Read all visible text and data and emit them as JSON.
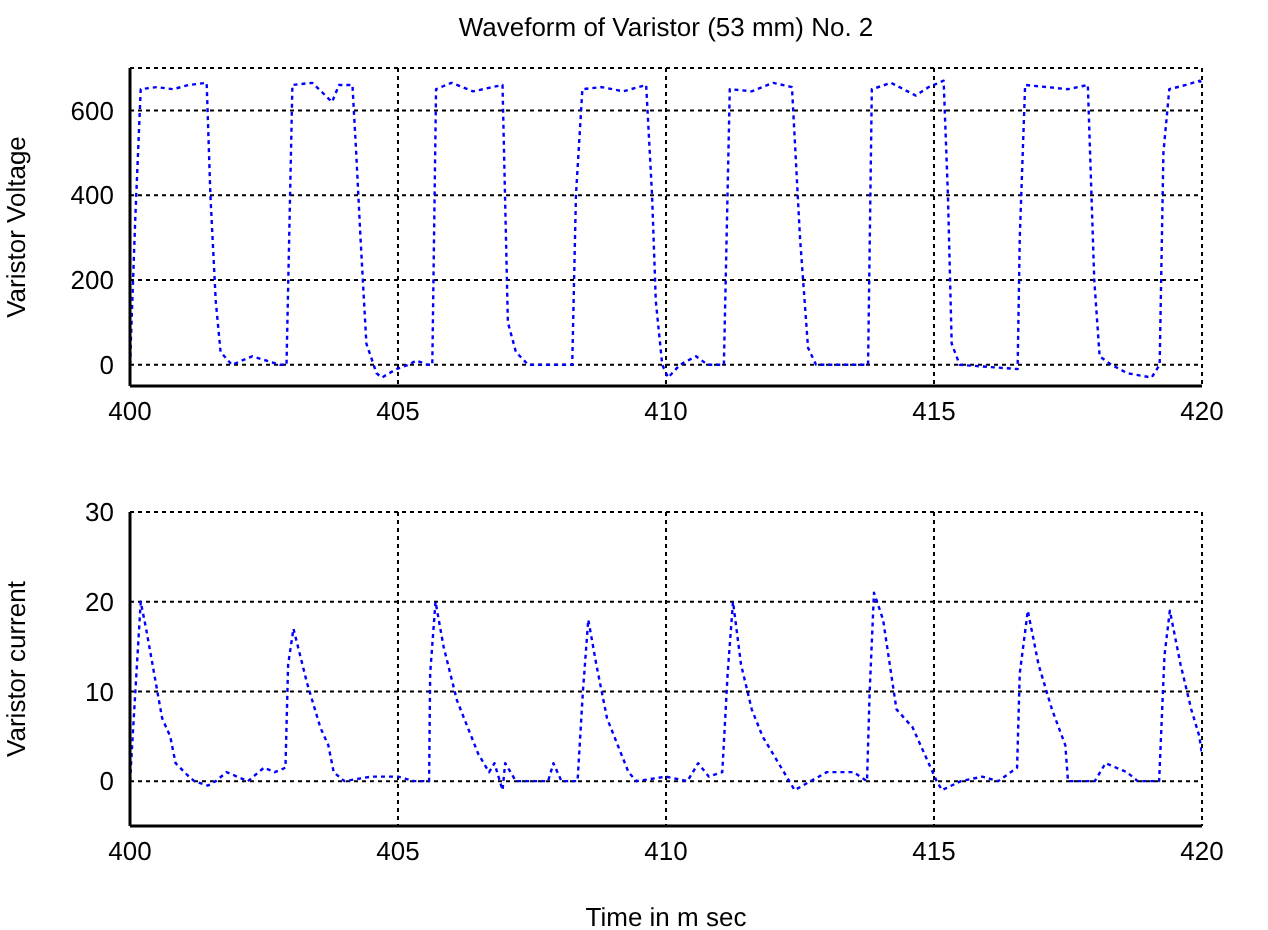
{
  "chart_data": [
    {
      "type": "line",
      "title": "Waveform of Varistor (53 mm) No. 2",
      "ylabel": "Varistor Voltage",
      "xlim": [
        400,
        420
      ],
      "xticks": [
        400,
        405,
        410,
        415,
        420
      ],
      "ylim": [
        -50,
        700
      ],
      "yticks": [
        0,
        200,
        400,
        600
      ],
      "grid": true,
      "line_style": "dotted",
      "x": [
        400,
        400.1,
        400.2,
        400.5,
        400.8,
        401.1,
        401.43,
        401.5,
        401.54,
        401.6,
        401.69,
        401.9,
        402.28,
        402.8,
        402.92,
        403.03,
        403.4,
        403.77,
        403.9,
        404.15,
        404.22,
        404.3,
        404.41,
        404.6,
        404.7,
        404.97,
        405.2,
        405.34,
        405.56,
        405.64,
        405.71,
        406.0,
        406.4,
        406.95,
        407.05,
        407.2,
        407.43,
        408.25,
        408.32,
        408.44,
        408.8,
        409.2,
        409.63,
        409.74,
        409.81,
        409.93,
        410.04,
        410.26,
        410.56,
        410.78,
        411.08,
        411.19,
        411.6,
        412.0,
        412.35,
        412.5,
        412.65,
        412.8,
        413.77,
        413.84,
        414.2,
        414.66,
        414.9,
        415.18,
        415.26,
        415.33,
        415.48,
        416.56,
        416.6,
        416.7,
        417.1,
        417.5,
        417.87,
        417.99,
        418.09,
        418.31,
        418.61,
        419.06,
        419.21,
        419.28,
        419.39,
        419.7,
        419.96,
        420
      ],
      "series": [
        {
          "color": "#0000ff",
          "values": [
            0,
            350,
            650,
            655,
            650,
            660,
            665,
            400,
            300,
            150,
            30,
            0,
            20,
            0,
            0,
            660,
            665,
            620,
            660,
            660,
            500,
            300,
            50,
            -20,
            -30,
            -10,
            0,
            10,
            0,
            0,
            650,
            665,
            645,
            660,
            100,
            30,
            0,
            0,
            400,
            650,
            655,
            645,
            660,
            400,
            150,
            0,
            -30,
            0,
            20,
            0,
            0,
            650,
            645,
            665,
            655,
            300,
            40,
            0,
            0,
            650,
            665,
            635,
            655,
            670,
            400,
            50,
            0,
            -10,
            300,
            660,
            655,
            650,
            660,
            200,
            20,
            0,
            -20,
            -30,
            0,
            500,
            650,
            660,
            670,
            660
          ]
        }
      ]
    },
    {
      "type": "line",
      "xlabel": "Time in m sec",
      "ylabel": "Varistor current",
      "xlim": [
        400,
        420
      ],
      "xticks": [
        400,
        405,
        410,
        415,
        420
      ],
      "ylim": [
        -5,
        30
      ],
      "yticks": [
        0,
        10,
        20,
        30
      ],
      "grid": true,
      "line_style": "dotted",
      "x": [
        400,
        400.15,
        400.2,
        400.3,
        400.45,
        400.6,
        400.75,
        400.85,
        401.1,
        401.2,
        401.45,
        401.6,
        401.8,
        402.2,
        402.5,
        402.7,
        402.9,
        402.95,
        403.05,
        403.3,
        403.4,
        403.55,
        403.7,
        403.8,
        404.0,
        404.5,
        405.0,
        405.3,
        405.58,
        405.6,
        405.7,
        405.85,
        406.1,
        406.3,
        406.5,
        406.7,
        406.8,
        406.95,
        407.0,
        407.2,
        407.8,
        407.9,
        408.05,
        408.35,
        408.45,
        408.55,
        408.7,
        408.9,
        409.1,
        409.3,
        409.45,
        410,
        410.4,
        410.6,
        410.8,
        411.05,
        411.15,
        411.25,
        411.4,
        411.6,
        411.8,
        412.0,
        412.2,
        412.4,
        412.7,
        413,
        413.5,
        413.75,
        413.8,
        413.88,
        414.05,
        414.2,
        414.3,
        414.6,
        414.9,
        415.05,
        415.15,
        415.5,
        415.9,
        416.2,
        416.55,
        416.6,
        416.75,
        416.95,
        417.2,
        417.45,
        417.5,
        418.0,
        418.2,
        418.6,
        418.8,
        419.2,
        419.3,
        419.4,
        419.6,
        419.8,
        419.95,
        420
      ],
      "series": [
        {
          "color": "#0000ff",
          "values": [
            0,
            15,
            20,
            17,
            12,
            7,
            5,
            2,
            0.5,
            0,
            -0.5,
            0,
            1,
            0,
            1.5,
            1,
            1.5,
            13,
            17,
            11,
            9,
            6,
            4,
            1,
            0,
            0.5,
            0.5,
            0,
            0,
            12,
            20,
            15,
            9,
            6,
            3,
            1,
            2,
            -1,
            2,
            0,
            0,
            2,
            0,
            0,
            10,
            18,
            13,
            7,
            4,
            1,
            0,
            0.5,
            0,
            2,
            0.5,
            1,
            12,
            20,
            13,
            8,
            5,
            3,
            1,
            -1,
            0,
            1,
            1,
            0,
            10,
            21,
            18,
            12,
            8,
            6,
            2,
            0,
            -1,
            0,
            0.5,
            0,
            1.5,
            12,
            19,
            13,
            8,
            4,
            0,
            0,
            2,
            1,
            0,
            0,
            14,
            19,
            13,
            8,
            5,
            3
          ]
        }
      ]
    }
  ]
}
